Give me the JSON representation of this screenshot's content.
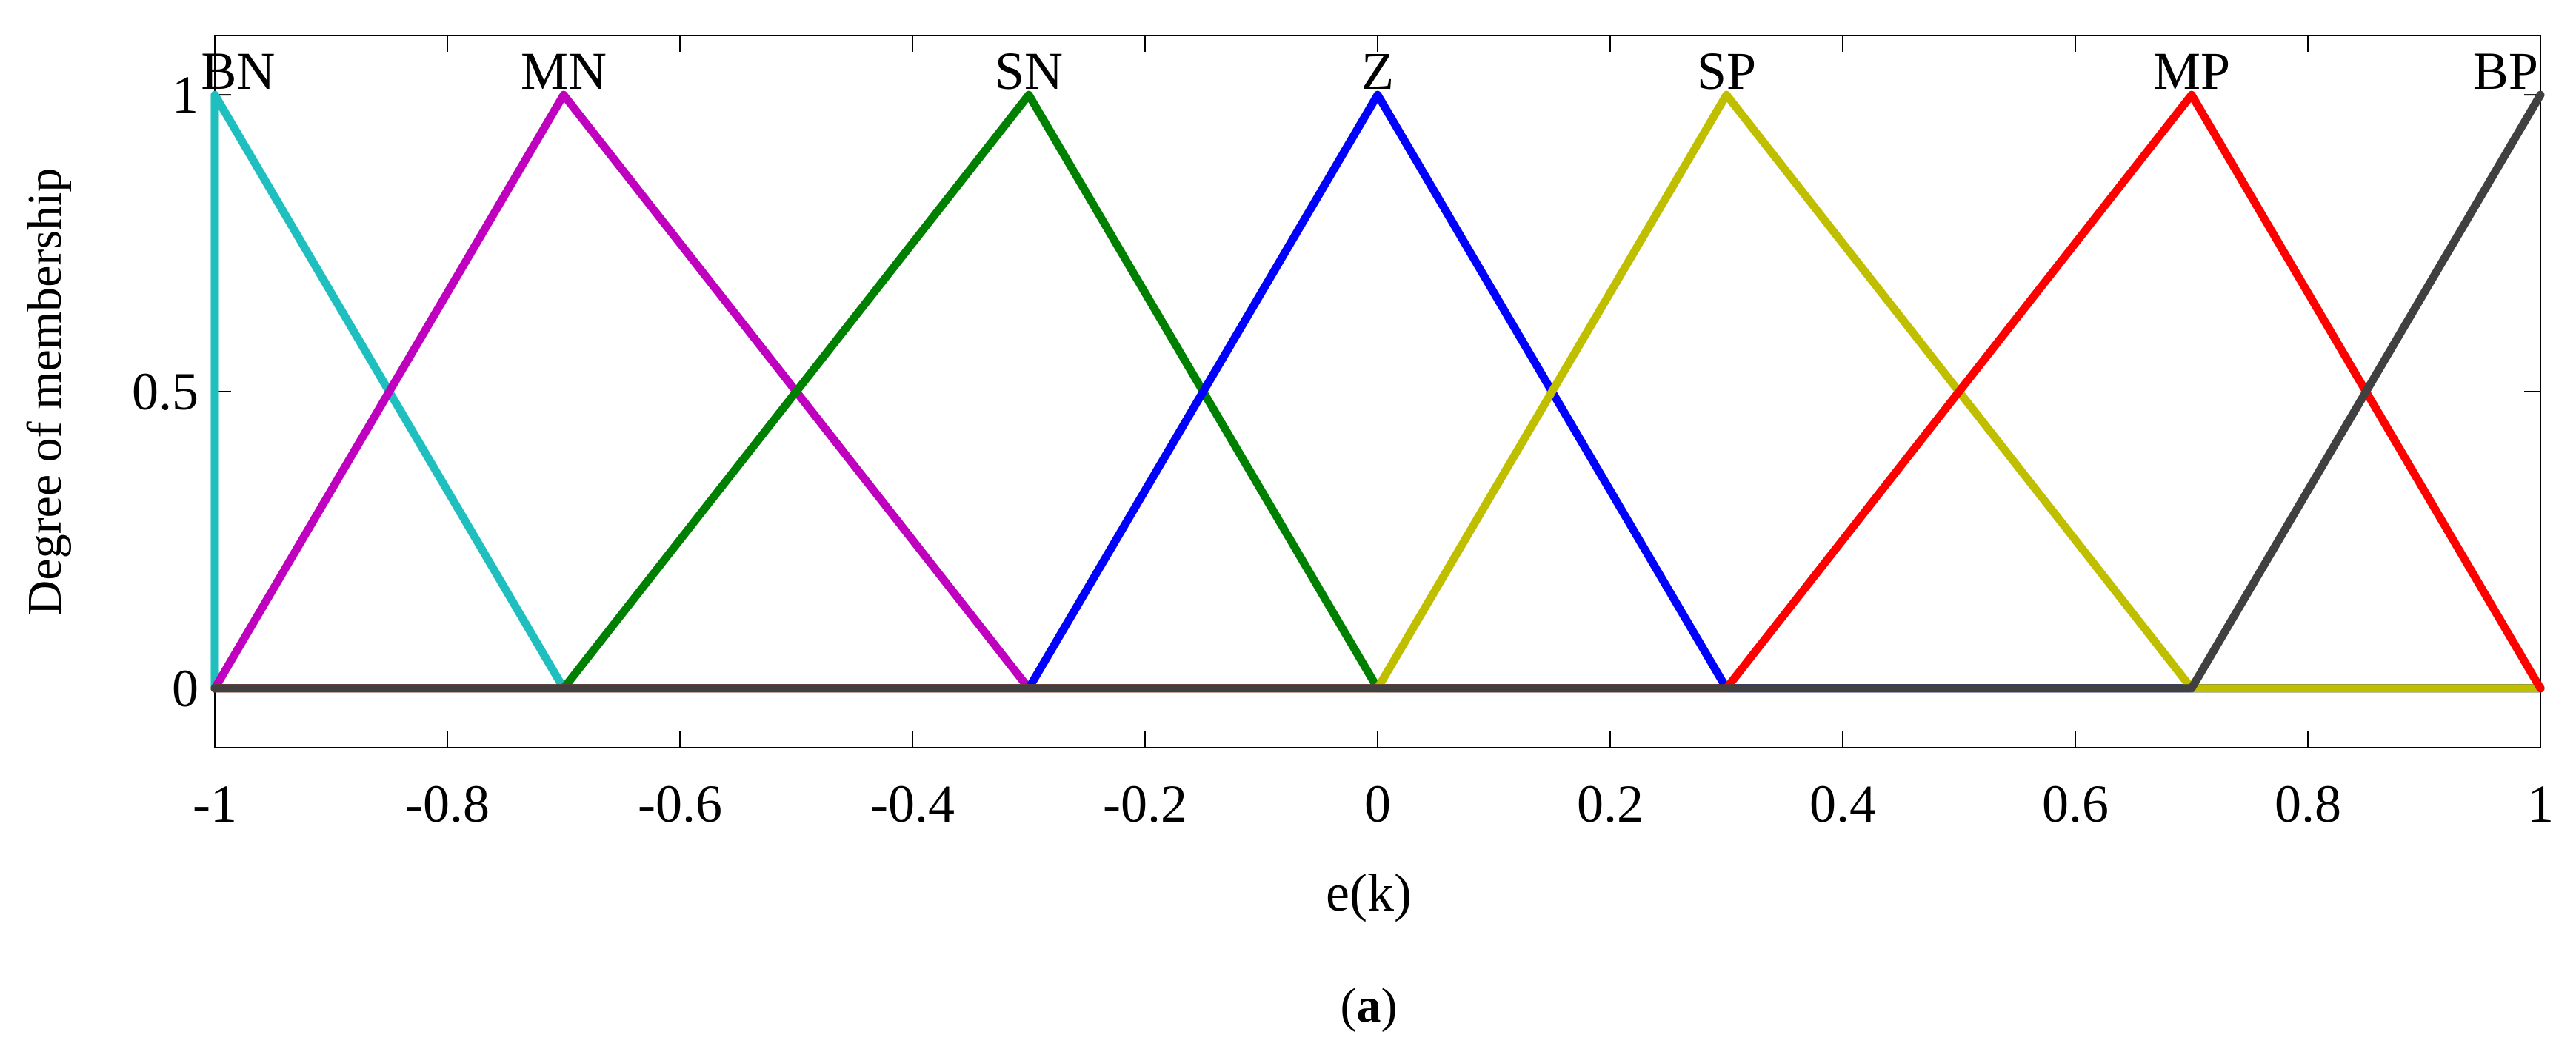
{
  "chart_data": {
    "type": "line",
    "title": "",
    "xlabel": "e(k)",
    "ylabel": "Degree of membership",
    "caption_open": "(",
    "caption_letter": "a",
    "caption_close": ")",
    "xlim": [
      -1,
      1
    ],
    "ylim": [
      -0.1,
      1.1
    ],
    "grid": false,
    "x_ticks": [
      -1,
      -0.8,
      -0.6,
      -0.4,
      -0.2,
      0,
      0.2,
      0.4,
      0.6,
      0.8,
      1
    ],
    "x_tick_labels": [
      "-1",
      "-0.8",
      "-0.6",
      "-0.4",
      "-0.2",
      "0",
      "0.2",
      "0.4",
      "0.6",
      "0.8",
      "1"
    ],
    "y_ticks": [
      0,
      0.5,
      1
    ],
    "y_tick_labels": [
      "0",
      "0.5",
      "1"
    ],
    "series": [
      {
        "name": "BN",
        "color": "#1fbfbf",
        "x": [
          -1,
          -1,
          -0.7,
          1
        ],
        "y": [
          0,
          1,
          0,
          0
        ]
      },
      {
        "name": "MN",
        "color": "#bf00bf",
        "x": [
          -1,
          -0.7,
          -0.3,
          1
        ],
        "y": [
          0,
          1,
          0,
          0
        ]
      },
      {
        "name": "SN",
        "color": "#008000",
        "x": [
          -1,
          -0.7,
          -0.3,
          0,
          1
        ],
        "y": [
          0,
          0,
          1,
          0,
          0
        ]
      },
      {
        "name": "Z",
        "color": "#0000ff",
        "x": [
          -1,
          -0.3,
          0,
          0.3,
          1
        ],
        "y": [
          0,
          0,
          1,
          0,
          0
        ]
      },
      {
        "name": "SP",
        "color": "#bfbf00",
        "x": [
          -1,
          0,
          0.3,
          0.7,
          1
        ],
        "y": [
          0,
          0,
          1,
          0,
          0
        ]
      },
      {
        "name": "MP",
        "color": "#ff0000",
        "x": [
          -1,
          0.3,
          0.7,
          1
        ],
        "y": [
          0,
          0,
          1,
          0
        ]
      },
      {
        "name": "BP",
        "color": "#404040",
        "x": [
          -1,
          0.7,
          1
        ],
        "y": [
          0,
          0,
          1
        ]
      }
    ],
    "annotations": [
      {
        "text": "BN",
        "x": -0.98,
        "y": 1.0
      },
      {
        "text": "MN",
        "x": -0.7,
        "y": 1.0
      },
      {
        "text": "SN",
        "x": -0.3,
        "y": 1.0
      },
      {
        "text": "Z",
        "x": 0.0,
        "y": 1.0
      },
      {
        "text": "SP",
        "x": 0.3,
        "y": 1.0
      },
      {
        "text": "MP",
        "x": 0.7,
        "y": 1.0
      },
      {
        "text": "BP",
        "x": 0.97,
        "y": 1.0
      }
    ]
  }
}
